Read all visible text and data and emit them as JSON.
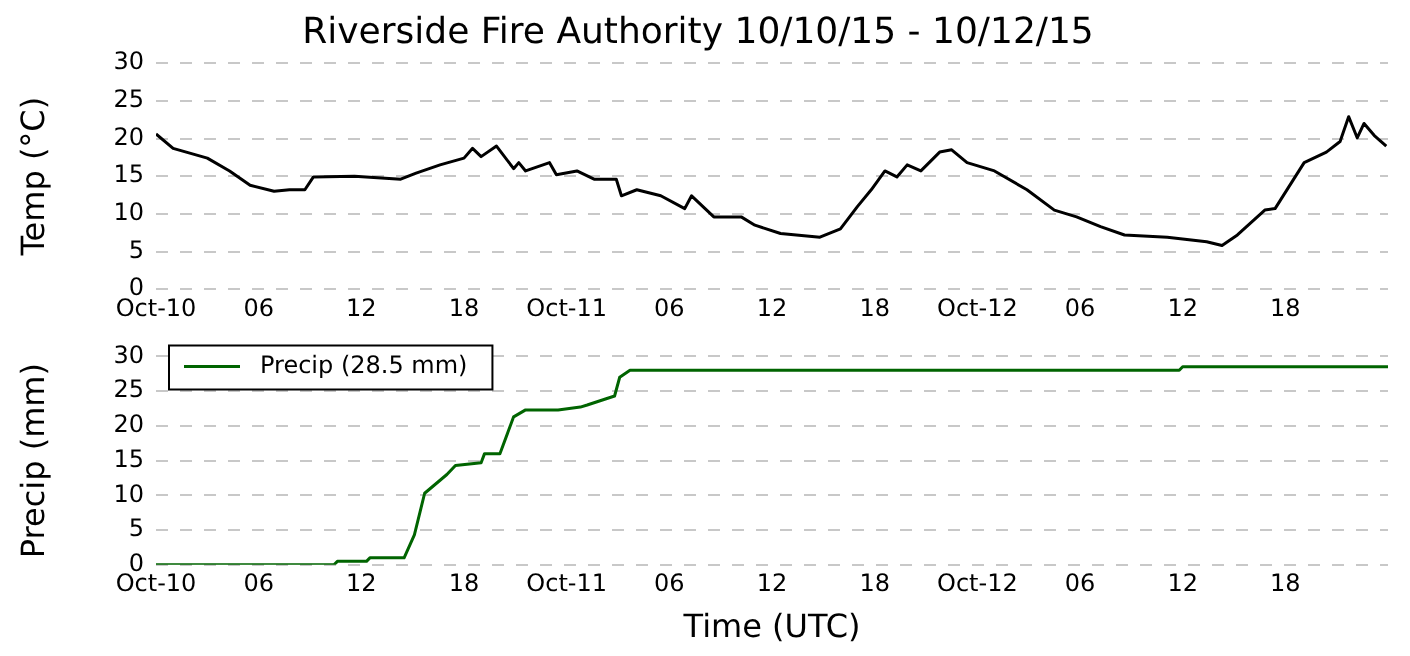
{
  "chart_data": [
    {
      "type": "line",
      "title": "Riverside Fire Authority 10/10/15 - 10/12/15",
      "ylabel": "Temp (°C)",
      "xlim": [
        "--10-10T00:00",
        "--10-13T00:00"
      ],
      "xticks": [
        {
          "value": "--10-10T00:00",
          "label": "Oct-10"
        },
        {
          "value": "--10-10T06:00",
          "label": "06"
        },
        {
          "value": "--10-10T12:00",
          "label": "12"
        },
        {
          "value": "--10-10T18:00",
          "label": "18"
        },
        {
          "value": "--10-11T00:00",
          "label": "Oct-11"
        },
        {
          "value": "--10-11T06:00",
          "label": "06"
        },
        {
          "value": "--10-11T12:00",
          "label": "12"
        },
        {
          "value": "--10-11T18:00",
          "label": "18"
        },
        {
          "value": "--10-12T00:00",
          "label": "Oct-12"
        },
        {
          "value": "--10-12T06:00",
          "label": "06"
        },
        {
          "value": "--10-12T12:00",
          "label": "12"
        },
        {
          "value": "--10-12T18:00",
          "label": "18"
        }
      ],
      "ylim": [
        0,
        30
      ],
      "yticks": [
        0,
        5,
        10,
        15,
        20,
        25,
        30
      ],
      "grid": "y",
      "marker": "none",
      "line_style": "solid",
      "series": [
        {
          "color": "#000000",
          "x": [
            "--10-10T00:00",
            "--10-10T01:00",
            "--10-10T03:00",
            "--10-10T04:18",
            "--10-10T05:30",
            "--10-10T06:54",
            "--10-10T07:48",
            "--10-10T08:42",
            "--10-10T09:12",
            "--10-10T11:36",
            "--10-10T14:18",
            "--10-10T15:12",
            "--10-10T16:36",
            "--10-10T18:00",
            "--10-10T18:30",
            "--10-10T19:00",
            "--10-10T19:54",
            "--10-10T20:54",
            "--10-10T21:12",
            "--10-10T21:36",
            "--10-10T23:00",
            "--10-10T23:24",
            "--10-11T00:36",
            "--10-11T01:36",
            "--10-11T02:54",
            "--10-11T03:12",
            "--10-11T04:06",
            "--10-11T05:30",
            "--10-11T06:54",
            "--10-11T07:18",
            "--10-11T08:36",
            "--10-11T10:12",
            "--10-11T11:00",
            "--10-11T12:30",
            "--10-11T14:48",
            "--10-11T16:00",
            "--10-11T17:00",
            "--10-11T17:48",
            "--10-11T18:36",
            "--10-11T19:18",
            "--10-11T19:54",
            "--10-11T20:42",
            "--10-11T21:48",
            "--10-11T22:30",
            "--10-11T23:24",
            "--10-12T01:00",
            "--10-12T02:54",
            "--10-12T04:30",
            "--10-12T05:48",
            "--10-12T07:12",
            "--10-12T08:36",
            "--10-12T11:06",
            "--10-12T13:24",
            "--10-12T14:18",
            "--10-12T15:12",
            "--10-12T16:48",
            "--10-12T17:24",
            "--10-12T19:06",
            "--10-12T20:24",
            "--10-12T21:12",
            "--10-12T21:42",
            "--10-12T22:12",
            "--10-12T22:36",
            "--10-12T23:12",
            "--10-12T23:54"
          ],
          "values": [
            20.6,
            18.7,
            17.4,
            15.7,
            13.8,
            13,
            13.2,
            13.2,
            14.9,
            15,
            14.6,
            15.4,
            16.5,
            17.4,
            18.7,
            17.6,
            19,
            16,
            16.8,
            15.7,
            16.8,
            15.2,
            15.7,
            14.6,
            14.6,
            12.4,
            13.2,
            12.4,
            10.7,
            12.4,
            9.6,
            9.6,
            8.5,
            7.4,
            6.9,
            8,
            11,
            13.2,
            15.7,
            14.9,
            16.5,
            15.7,
            18.2,
            18.5,
            16.8,
            15.7,
            13.2,
            10.5,
            9.6,
            8.3,
            7.2,
            6.9,
            6.3,
            5.8,
            7.2,
            10.5,
            10.7,
            16.8,
            18.2,
            19.6,
            22.9,
            20.1,
            22,
            20.4,
            19
          ]
        }
      ]
    },
    {
      "type": "line",
      "xlabel": "Time (UTC)",
      "ylabel": "Precip (mm)",
      "legend": "top left",
      "xlim": [
        "--10-10T00:00",
        "--10-13T00:00"
      ],
      "xticks": [
        {
          "value": "--10-10T00:00",
          "label": "Oct-10"
        },
        {
          "value": "--10-10T06:00",
          "label": "06"
        },
        {
          "value": "--10-10T12:00",
          "label": "12"
        },
        {
          "value": "--10-10T18:00",
          "label": "18"
        },
        {
          "value": "--10-11T00:00",
          "label": "Oct-11"
        },
        {
          "value": "--10-11T06:00",
          "label": "06"
        },
        {
          "value": "--10-11T12:00",
          "label": "12"
        },
        {
          "value": "--10-11T18:00",
          "label": "18"
        },
        {
          "value": "--10-12T00:00",
          "label": "Oct-12"
        },
        {
          "value": "--10-12T06:00",
          "label": "06"
        },
        {
          "value": "--10-12T12:00",
          "label": "12"
        },
        {
          "value": "--10-12T18:00",
          "label": "18"
        }
      ],
      "ylim": [
        0,
        30
      ],
      "yticks": [
        0,
        5,
        10,
        15,
        20,
        25,
        30
      ],
      "grid": "y",
      "marker": "none",
      "line_style": "solid",
      "series": [
        {
          "name": "Precip (28.5 mm)",
          "color": "#006400",
          "x": [
            "--10-10T00:00",
            "--10-10T10:24",
            "--10-10T10:36",
            "--10-10T12:18",
            "--10-10T12:30",
            "--10-10T14:30",
            "--10-10T15:06",
            "--10-10T15:42",
            "--10-10T17:00",
            "--10-10T17:30",
            "--10-10T19:00",
            "--10-10T19:12",
            "--10-10T20:06",
            "--10-10T20:54",
            "--10-10T21:36",
            "--10-10T23:30",
            "--10-11T00:48",
            "--10-11T01:12",
            "--10-11T02:48",
            "--10-11T03:06",
            "--10-11T03:42",
            "--10-12T11:48",
            "--10-12T12:00",
            "--10-13T00:00"
          ],
          "values": [
            0,
            0,
            0.5,
            0.5,
            1,
            1,
            4.3,
            10.3,
            13,
            14.3,
            14.7,
            16,
            16,
            21.3,
            22.3,
            22.3,
            22.7,
            23,
            24.3,
            27,
            28,
            28,
            28.5,
            28.5
          ]
        }
      ]
    }
  ]
}
